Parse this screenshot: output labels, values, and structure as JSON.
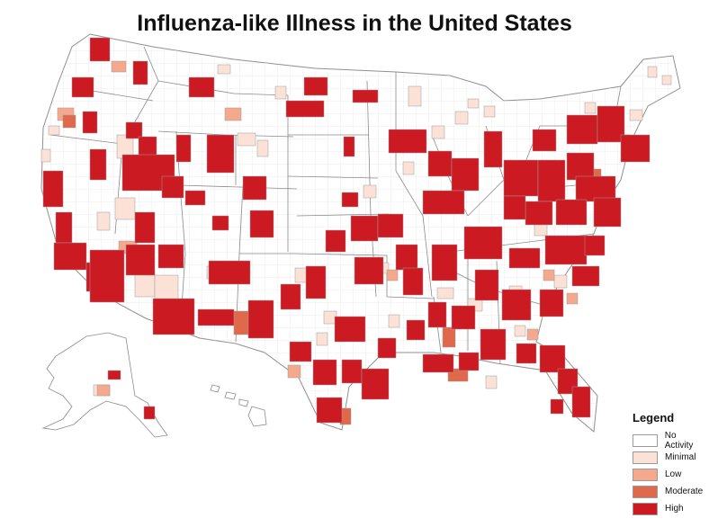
{
  "title": "Influenza-like Illness in the United States",
  "legend": {
    "title": "Legend",
    "items": [
      {
        "label": "No Activity",
        "color": "#ffffff"
      },
      {
        "label": "Minimal",
        "color": "#fbe1d6"
      },
      {
        "label": "Low",
        "color": "#f4a98c"
      },
      {
        "label": "Moderate",
        "color": "#e0694b"
      },
      {
        "label": "High",
        "color": "#cc1a22"
      }
    ]
  },
  "colors": {
    "border": "#9b9b9b",
    "land": "#ffffff"
  }
}
